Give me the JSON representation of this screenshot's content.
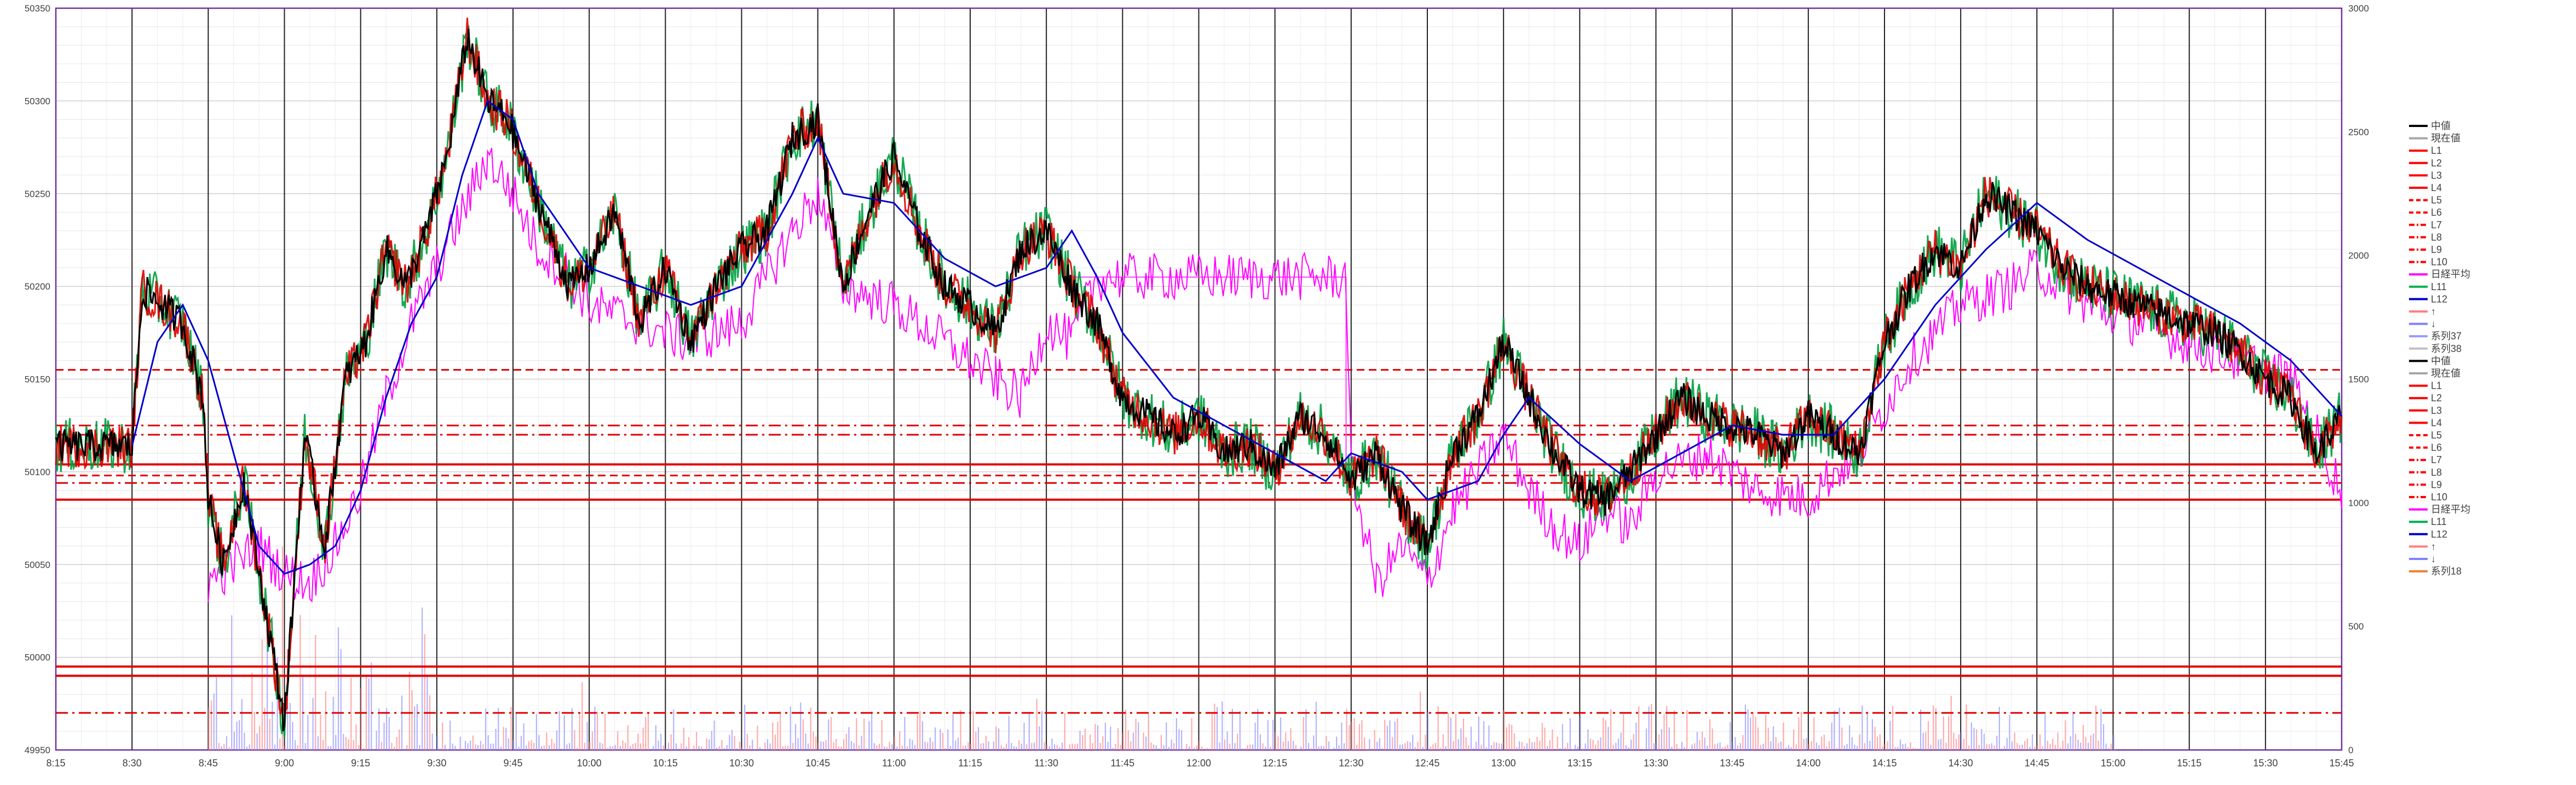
{
  "chart_data": {
    "type": "line",
    "title": "",
    "xlabel": "",
    "ylabel": "",
    "ylim": [
      49950,
      50350
    ],
    "y2lim": [
      0,
      3000
    ],
    "grid": true,
    "legend_position": "right",
    "x_ticks": [
      "8:15",
      "8:30",
      "8:45",
      "9:00",
      "9:15",
      "9:30",
      "9:45",
      "10:00",
      "10:15",
      "10:30",
      "10:45",
      "11:00",
      "11:15",
      "11:30",
      "11:45",
      "12:00",
      "12:15",
      "12:30",
      "12:45",
      "13:00",
      "13:15",
      "13:30",
      "13:45",
      "14:00",
      "14:15",
      "14:30",
      "14:45",
      "15:00",
      "15:15",
      "15:30",
      "15:45"
    ],
    "y_ticks": [
      49950,
      50000,
      50050,
      50100,
      50150,
      50200,
      50250,
      50300,
      50350
    ],
    "y2_ticks": [
      0,
      500,
      1000,
      1500,
      2000,
      2500,
      3000
    ],
    "price_series": {
      "name": "中値",
      "color": "#000000",
      "x": [
        "8:15",
        "8:30",
        "8:32",
        "8:36",
        "8:40",
        "8:44",
        "8:45",
        "8:48",
        "8:52",
        "8:56",
        "9:00",
        "9:04",
        "9:08",
        "9:12",
        "9:16",
        "9:20",
        "9:24",
        "9:28",
        "9:32",
        "9:36",
        "9:40",
        "9:44",
        "9:48",
        "9:52",
        "9:56",
        "10:00",
        "10:05",
        "10:10",
        "10:15",
        "10:20",
        "10:25",
        "10:30",
        "10:35",
        "10:40",
        "10:45",
        "10:50",
        "10:55",
        "11:00",
        "11:05",
        "11:10",
        "11:15",
        "11:20",
        "11:25",
        "11:30",
        "11:35",
        "11:40",
        "11:45",
        "11:50",
        "11:55",
        "12:00",
        "12:05",
        "12:10",
        "12:15",
        "12:20",
        "12:25",
        "12:30",
        "12:35",
        "12:40",
        "12:45",
        "12:50",
        "12:55",
        "13:00",
        "13:05",
        "13:10",
        "13:15",
        "13:20",
        "13:25",
        "13:30",
        "13:35",
        "13:40",
        "13:45",
        "13:50",
        "13:55",
        "14:00",
        "14:05",
        "14:10",
        "14:15",
        "14:20",
        "14:25",
        "14:30",
        "14:35",
        "14:40",
        "14:45",
        "14:50",
        "14:55",
        "15:00",
        "15:05",
        "15:10",
        "15:15",
        "15:20",
        "15:25",
        "15:30",
        "15:35",
        "15:40",
        "15:45"
      ],
      "y": [
        50114,
        50114,
        50198,
        50190,
        50180,
        50140,
        50085,
        50050,
        50095,
        50030,
        49965,
        50120,
        50060,
        50150,
        50170,
        50220,
        50200,
        50230,
        50270,
        50335,
        50300,
        50290,
        50260,
        50230,
        50200,
        50210,
        50240,
        50180,
        50210,
        50170,
        50200,
        50220,
        50230,
        50280,
        50290,
        50200,
        50240,
        50270,
        50230,
        50200,
        50190,
        50175,
        50220,
        50230,
        50200,
        50180,
        50140,
        50130,
        50120,
        50130,
        50110,
        50115,
        50100,
        50130,
        50120,
        50095,
        50110,
        50080,
        50060,
        50110,
        50130,
        50170,
        50140,
        50110,
        50090,
        50085,
        50100,
        50120,
        50140,
        50130,
        50125,
        50120,
        50110,
        50130,
        50120,
        50110,
        50170,
        50200,
        50220,
        50210,
        50250,
        50240,
        50230,
        50210,
        50200,
        50195,
        50190,
        50185,
        50180,
        50175,
        50165,
        50150,
        50140,
        50110,
        50130
      ]
    },
    "blue_series": {
      "name": "L12",
      "color": "#0000cc",
      "x": [
        "8:30",
        "8:35",
        "8:40",
        "8:45",
        "8:50",
        "8:55",
        "9:00",
        "9:05",
        "9:10",
        "9:15",
        "9:20",
        "9:25",
        "9:30",
        "9:35",
        "9:40",
        "9:45",
        "9:50",
        "9:55",
        "10:00",
        "10:10",
        "10:20",
        "10:30",
        "10:40",
        "10:45",
        "10:50",
        "11:00",
        "11:10",
        "11:20",
        "11:30",
        "11:35",
        "11:40",
        "11:45",
        "11:55",
        "12:05",
        "12:15",
        "12:25",
        "12:30",
        "12:40",
        "12:45",
        "12:55",
        "13:00",
        "13:05",
        "13:15",
        "13:25",
        "13:35",
        "13:45",
        "13:55",
        "14:05",
        "14:15",
        "14:25",
        "14:35",
        "14:45",
        "14:55",
        "15:05",
        "15:15",
        "15:25",
        "15:35",
        "15:45"
      ],
      "y": [
        50114,
        50170,
        50190,
        50160,
        50110,
        50060,
        50045,
        50050,
        50060,
        50090,
        50140,
        50180,
        50205,
        50260,
        50300,
        50290,
        50250,
        50230,
        50210,
        50200,
        50190,
        50200,
        50250,
        50280,
        50250,
        50245,
        50215,
        50200,
        50210,
        50230,
        50205,
        50175,
        50140,
        50125,
        50110,
        50095,
        50110,
        50100,
        50085,
        50095,
        50120,
        50140,
        50115,
        50095,
        50110,
        50125,
        50120,
        50120,
        50150,
        50190,
        50220,
        50245,
        50225,
        50210,
        50195,
        50180,
        50160,
        50130
      ]
    },
    "magenta_series": {
      "name": "日経平均",
      "color": "#ff00ff",
      "x": [
        "8:45",
        "8:50",
        "8:55",
        "9:00",
        "9:05",
        "9:10",
        "9:15",
        "9:20",
        "9:25",
        "9:30",
        "9:35",
        "9:40",
        "9:45",
        "9:50",
        "9:55",
        "10:00",
        "10:10",
        "10:20",
        "10:30",
        "10:40",
        "10:45",
        "10:50",
        "11:00",
        "11:10",
        "11:20",
        "11:25",
        "11:30",
        "11:35",
        "11:40",
        "12:29",
        "12:30",
        "12:35",
        "12:40",
        "12:45",
        "12:50",
        "12:55",
        "13:00",
        "13:05",
        "13:10",
        "13:15",
        "13:20",
        "13:25",
        "13:30",
        "13:40",
        "13:50",
        "14:00",
        "14:05",
        "14:10",
        "14:20",
        "14:30",
        "14:40",
        "14:45",
        "14:55",
        "15:05",
        "15:15",
        "15:25",
        "15:35",
        "15:45"
      ],
      "y": [
        50040,
        50050,
        50060,
        50045,
        50040,
        50060,
        50090,
        50140,
        50180,
        50210,
        50240,
        50270,
        50250,
        50220,
        50210,
        50190,
        50180,
        50170,
        50180,
        50230,
        50250,
        50200,
        50190,
        50170,
        50150,
        50140,
        50180,
        50170,
        50205,
        50205,
        50100,
        50040,
        50060,
        50040,
        50080,
        50100,
        50120,
        50090,
        50070,
        50060,
        50080,
        50070,
        50100,
        50110,
        50090,
        50085,
        50100,
        50110,
        50160,
        50190,
        50200,
        50210,
        50190,
        50180,
        50170,
        50160,
        50150,
        50090
      ]
    },
    "horizontal_lines": [
      {
        "y": 50155,
        "color": "#e00000",
        "style": "dashed"
      },
      {
        "y": 50125,
        "color": "#e00000",
        "style": "dashdot"
      },
      {
        "y": 50120,
        "color": "#e00000",
        "style": "dashdot"
      },
      {
        "y": 50104,
        "color": "#e00000",
        "style": "solid"
      },
      {
        "y": 50098,
        "color": "#e00000",
        "style": "dashed"
      },
      {
        "y": 50094,
        "color": "#e00000",
        "style": "dashdot"
      },
      {
        "y": 50085,
        "color": "#e00000",
        "style": "solid"
      },
      {
        "y": 49995,
        "color": "#e00000",
        "style": "solid"
      },
      {
        "y": 49990,
        "color": "#e00000",
        "style": "solid"
      },
      {
        "y": 49970,
        "color": "#e00000",
        "style": "dashdot"
      }
    ],
    "legend_entries": [
      {
        "label": "中値",
        "color": "#000000",
        "style": "solid"
      },
      {
        "label": "現在値",
        "color": "#a6a6a6",
        "style": "solid"
      },
      {
        "label": "L1",
        "color": "#ff0000",
        "style": "solid"
      },
      {
        "label": "L2",
        "color": "#ff0000",
        "style": "solid"
      },
      {
        "label": "L3",
        "color": "#ff0000",
        "style": "solid"
      },
      {
        "label": "L4",
        "color": "#ff0000",
        "style": "solid"
      },
      {
        "label": "L5",
        "color": "#ff0000",
        "style": "dashed"
      },
      {
        "label": "L6",
        "color": "#ff0000",
        "style": "dashed"
      },
      {
        "label": "L7",
        "color": "#ff0000",
        "style": "dashdot"
      },
      {
        "label": "L8",
        "color": "#ff0000",
        "style": "dashdot"
      },
      {
        "label": "L9",
        "color": "#ff0000",
        "style": "dashdot"
      },
      {
        "label": "L10",
        "color": "#ff0000",
        "style": "dashdot"
      },
      {
        "label": "日経平均",
        "color": "#ff00ff",
        "style": "solid"
      },
      {
        "label": "L11",
        "color": "#00b050",
        "style": "solid"
      },
      {
        "label": "L12",
        "color": "#0000cc",
        "style": "solid"
      },
      {
        "label": "↑",
        "color": "#ff8080",
        "style": "solid"
      },
      {
        "label": "↓",
        "color": "#8080ff",
        "style": "solid"
      },
      {
        "label": "系列37",
        "color": "#9999ff",
        "style": "solid"
      },
      {
        "label": "系列38",
        "color": "#bfbfbf",
        "style": "solid"
      },
      {
        "label": "中値",
        "color": "#000000",
        "style": "solid"
      },
      {
        "label": "現在値",
        "color": "#a6a6a6",
        "style": "solid"
      },
      {
        "label": "L1",
        "color": "#ff0000",
        "style": "solid"
      },
      {
        "label": "L2",
        "color": "#ff0000",
        "style": "solid"
      },
      {
        "label": "L3",
        "color": "#ff0000",
        "style": "solid"
      },
      {
        "label": "L4",
        "color": "#ff0000",
        "style": "solid"
      },
      {
        "label": "L5",
        "color": "#ff0000",
        "style": "dashed"
      },
      {
        "label": "L6",
        "color": "#ff0000",
        "style": "dashed"
      },
      {
        "label": "L7",
        "color": "#ff0000",
        "style": "dashdot"
      },
      {
        "label": "L8",
        "color": "#ff0000",
        "style": "dashdot"
      },
      {
        "label": "L9",
        "color": "#ff0000",
        "style": "dashdot"
      },
      {
        "label": "L10",
        "color": "#ff0000",
        "style": "dashdot"
      },
      {
        "label": "日経平均",
        "color": "#ff00ff",
        "style": "solid"
      },
      {
        "label": "L11",
        "color": "#00b050",
        "style": "solid"
      },
      {
        "label": "L12",
        "color": "#0000cc",
        "style": "solid"
      },
      {
        "label": "↑",
        "color": "#ff8080",
        "style": "solid"
      },
      {
        "label": "↓",
        "color": "#8080ff",
        "style": "solid"
      },
      {
        "label": "系列18",
        "color": "#ed7d31",
        "style": "solid"
      }
    ]
  }
}
